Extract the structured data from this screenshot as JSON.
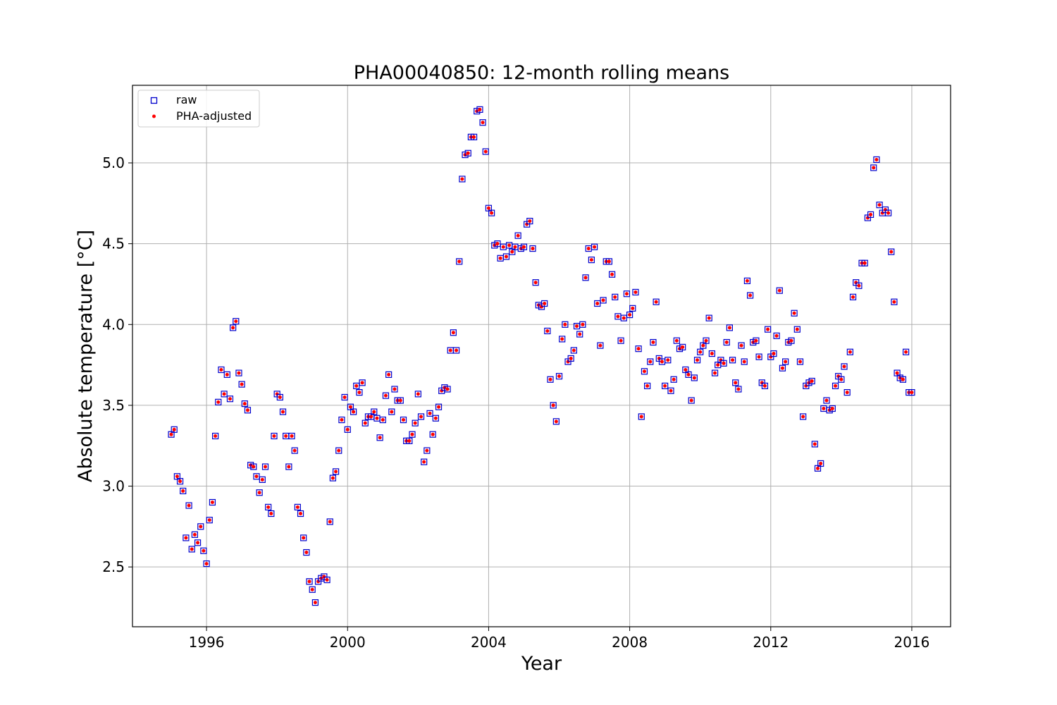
{
  "chart_data": {
    "type": "scatter",
    "title": "PHA00040850: 12-month rolling means",
    "xlabel": "Year",
    "ylabel": "Absolute temperature [°C]",
    "xlim": [
      1993.9,
      2017.1
    ],
    "ylim": [
      2.13,
      5.48
    ],
    "xticks": [
      1996,
      2000,
      2004,
      2008,
      2012,
      2016
    ],
    "yticks": [
      2.5,
      3.0,
      3.5,
      4.0,
      4.5,
      5.0
    ],
    "grid": true,
    "legend_position": "top-left",
    "series": [
      {
        "name": "raw",
        "marker": "open-square",
        "color": "#0000cc"
      },
      {
        "name": "PHA-adjusted",
        "marker": "dot",
        "color": "#ff0000"
      }
    ],
    "start_year": 1995.0,
    "step_years": 0.0833333,
    "values": [
      3.32,
      3.35,
      3.06,
      3.03,
      2.97,
      2.68,
      2.88,
      2.61,
      2.7,
      2.65,
      2.75,
      2.6,
      2.52,
      2.79,
      2.9,
      3.31,
      3.52,
      3.72,
      3.57,
      3.69,
      3.54,
      3.98,
      4.02,
      3.7,
      3.63,
      3.51,
      3.47,
      3.13,
      3.12,
      3.06,
      2.96,
      3.04,
      3.12,
      2.87,
      2.83,
      3.31,
      3.57,
      3.55,
      3.46,
      3.31,
      3.12,
      3.31,
      3.22,
      2.87,
      2.83,
      2.68,
      2.59,
      2.41,
      2.36,
      2.28,
      2.41,
      2.43,
      2.44,
      2.42,
      2.78,
      3.05,
      3.09,
      3.22,
      3.41,
      3.55,
      3.35,
      3.49,
      3.46,
      3.62,
      3.58,
      3.64,
      3.39,
      3.43,
      3.43,
      3.46,
      3.42,
      3.3,
      3.41,
      3.56,
      3.69,
      3.46,
      3.6,
      3.53,
      3.53,
      3.41,
      3.28,
      3.28,
      3.32,
      3.39,
      3.57,
      3.43,
      3.15,
      3.22,
      3.45,
      3.32,
      3.42,
      3.49,
      3.59,
      3.61,
      3.6,
      3.84,
      3.95,
      3.84,
      4.39,
      4.9,
      5.05,
      5.06,
      5.16,
      5.16,
      5.32,
      5.33,
      5.25,
      5.07,
      4.72,
      4.69,
      4.49,
      4.5,
      4.41,
      4.48,
      4.42,
      4.49,
      4.45,
      4.48,
      4.55,
      4.47,
      4.48,
      4.62,
      4.64,
      4.47,
      4.26,
      4.12,
      4.11,
      4.13,
      3.96,
      3.66,
      3.5,
      3.4,
      3.68,
      3.91,
      4.0,
      3.77,
      3.79,
      3.84,
      3.99,
      3.94,
      4.0,
      4.29,
      4.47,
      4.4,
      4.48,
      4.13,
      3.87,
      4.15,
      4.39,
      4.39,
      4.31,
      4.17,
      4.05,
      3.9,
      4.04,
      4.19,
      4.06,
      4.1,
      4.2,
      3.85,
      3.43,
      3.71,
      3.62,
      3.77,
      3.89,
      4.14,
      3.79,
      3.77,
      3.62,
      3.78,
      3.59,
      3.66,
      3.9,
      3.85,
      3.86,
      3.72,
      3.69,
      3.53,
      3.67,
      3.78,
      3.83,
      3.87,
      3.9,
      4.04,
      3.82,
      3.7,
      3.75,
      3.78,
      3.76,
      3.89,
      3.98,
      3.78,
      3.64,
      3.6,
      3.87,
      3.77,
      4.27,
      4.18,
      3.89,
      3.9,
      3.8,
      3.64,
      3.62,
      3.97,
      3.8,
      3.82,
      3.93,
      4.21,
      3.73,
      3.77,
      3.89,
      3.9,
      4.07,
      3.97,
      3.77,
      3.43,
      3.62,
      3.64,
      3.65,
      3.26,
      3.11,
      3.14,
      3.48,
      3.53,
      3.47,
      3.48,
      3.62,
      3.68,
      3.66,
      3.74,
      3.58,
      3.83,
      4.17,
      4.26,
      4.24,
      4.38,
      4.38,
      4.66,
      4.68,
      4.97,
      5.02,
      4.74,
      4.69,
      4.71,
      4.69,
      4.45,
      4.14,
      3.7,
      3.67,
      3.66,
      3.83,
      3.58,
      3.58
    ]
  }
}
